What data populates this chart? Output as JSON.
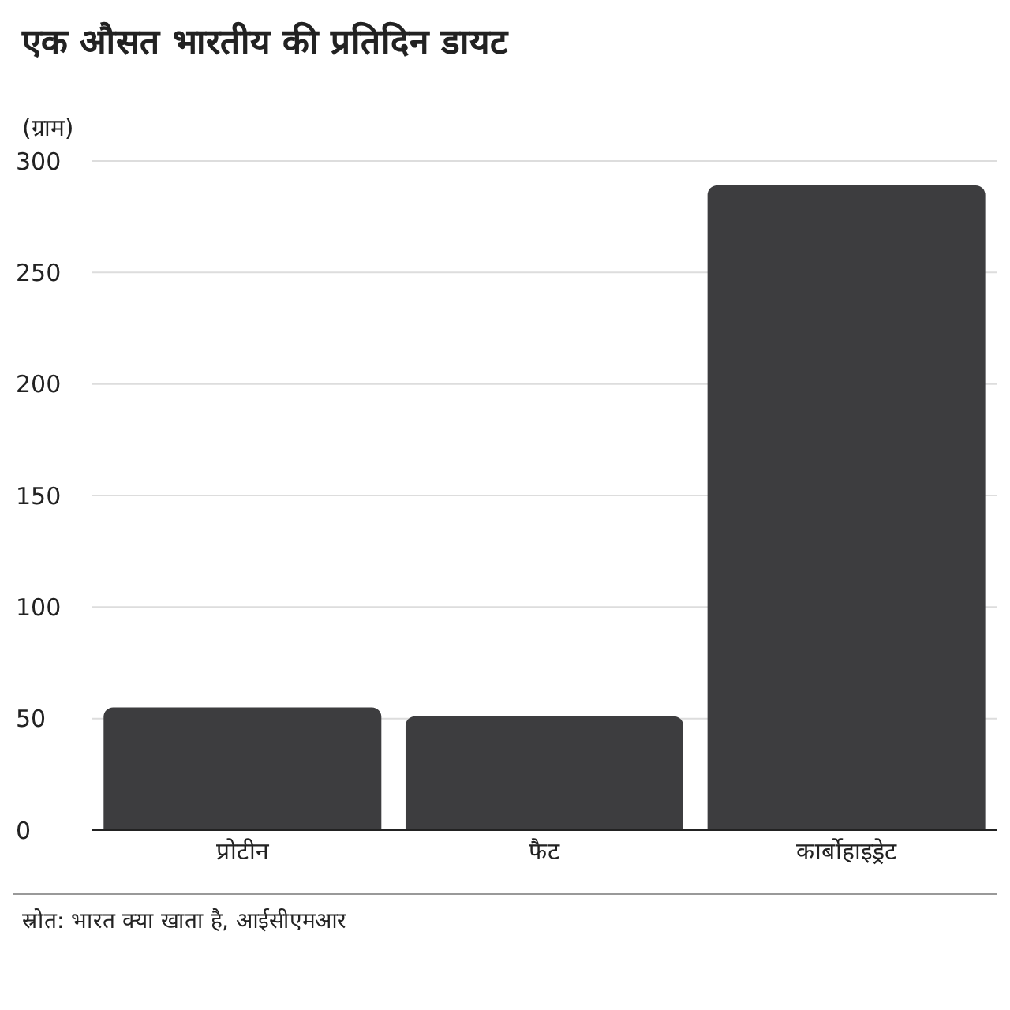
{
  "chart_data": {
    "type": "bar",
    "title": "एक औसत भारतीय की प्रतिदिन डायट",
    "ylabel": "(ग्राम)",
    "categories": [
      "प्रोटीन",
      "फैट",
      "कार्बोहाइड्रेट"
    ],
    "values": [
      55,
      51,
      289
    ],
    "color": "#3d3d3f",
    "ylim": [
      0,
      300
    ],
    "yticks": [
      0,
      50,
      100,
      150,
      200,
      250,
      300
    ],
    "grid": "y",
    "annotations": [
      "स्रोत: भारत क्या खाता है, आईसीएमआर"
    ]
  }
}
